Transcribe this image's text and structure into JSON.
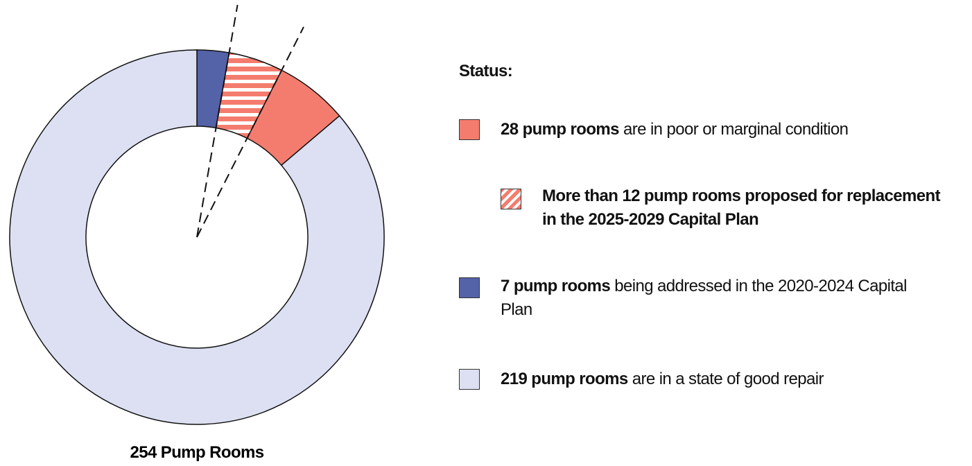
{
  "chart_data": {
    "type": "donut",
    "total_label": "254 Pump Rooms",
    "legend_title": "Status:",
    "segments": [
      {
        "bold": "7 pump rooms",
        "name": "being addressed in the 2020-2024 Capital Plan",
        "value": 7,
        "color": "#5462a8"
      },
      {
        "bold": "28 pump rooms",
        "name": "are in poor or marginal condition",
        "value": 28,
        "color": "#f47c6e"
      },
      {
        "bold": "219 pump rooms",
        "name": "are in a state of good repair",
        "value": 219,
        "color": "#dce0f2"
      }
    ],
    "highlight": {
      "name": "More than 12 pump rooms proposed for replacement in the 2025-2029 Capital Plan",
      "value": 12,
      "segment": 1,
      "hatched": true
    }
  }
}
